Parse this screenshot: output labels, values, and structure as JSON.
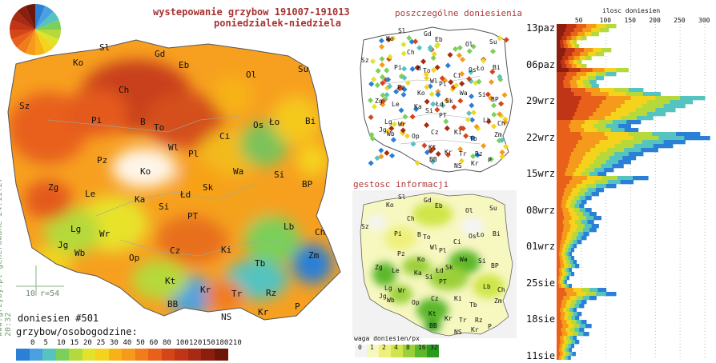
{
  "header": {
    "title_line1": "wystepowanie grzybow 191007-191013",
    "title_line2": "poniedzialek-niedziela"
  },
  "sidebar_note": "www.grzyby.pl generowane 24.11.27 20:32",
  "main_map": {
    "count_label": "doniesien #501",
    "scale_marker": "10 r=54",
    "legend_title": "grzybow/osobogodzine:",
    "legend_ticks": [
      "0",
      "5",
      "10",
      "15",
      "20",
      "25",
      "30",
      "40",
      "50",
      "60",
      "80",
      "100",
      "120",
      "150",
      "180",
      "210"
    ],
    "legend_colors": [
      "#2a7fd6",
      "#4aa0e0",
      "#55c3c0",
      "#7ccf5a",
      "#b5d93a",
      "#e2e22a",
      "#f5d21c",
      "#f7b218",
      "#f59a1a",
      "#f07c1a",
      "#e8601a",
      "#d4461a",
      "#c03516",
      "#a82a12",
      "#8c1e0e",
      "#6e160a"
    ],
    "regions": [
      {
        "code": "Sl"
      },
      {
        "code": "Gd"
      },
      {
        "code": "Eb"
      },
      {
        "code": "Ko"
      },
      {
        "code": "Su"
      },
      {
        "code": "Sz"
      },
      {
        "code": "Ch"
      },
      {
        "code": "Ol"
      },
      {
        "code": "Pi"
      },
      {
        "code": "B"
      },
      {
        "code": "To"
      },
      {
        "code": "Os"
      },
      {
        "code": "Ło"
      },
      {
        "code": "Bi"
      },
      {
        "code": "Ci"
      },
      {
        "code": "Wl"
      },
      {
        "code": "Pl"
      },
      {
        "code": "Pz"
      },
      {
        "code": "Ko"
      },
      {
        "code": "Wa"
      },
      {
        "code": "Si"
      },
      {
        "code": "Zg"
      },
      {
        "code": "Le"
      },
      {
        "code": "Ka"
      },
      {
        "code": "Sk"
      },
      {
        "code": "Łd"
      },
      {
        "code": "BP"
      },
      {
        "code": "Si"
      },
      {
        "code": "PT"
      },
      {
        "code": "Lg"
      },
      {
        "code": "Wr"
      },
      {
        "code": "Lb"
      },
      {
        "code": "Ch"
      },
      {
        "code": "Jg"
      },
      {
        "code": "Wb"
      },
      {
        "code": "Op"
      },
      {
        "code": "Cz"
      },
      {
        "code": "Ki"
      },
      {
        "code": "Zm"
      },
      {
        "code": "Tb"
      },
      {
        "code": "Kt"
      },
      {
        "code": "Kr"
      },
      {
        "code": "Tr"
      },
      {
        "code": "Rz"
      },
      {
        "code": "BB"
      },
      {
        "code": "NS"
      },
      {
        "code": "Kr"
      },
      {
        "code": "P"
      }
    ]
  },
  "reports_map": {
    "title": "poszczególne doniesienia",
    "regions": [
      "Sl",
      "Gd",
      "Eb",
      "Ko",
      "Su",
      "Sz",
      "Ch",
      "Ol",
      "Pi",
      "B",
      "To",
      "Os",
      "Ło",
      "Bi",
      "Ci",
      "Wl",
      "Pl",
      "Pz",
      "Ko",
      "Wa",
      "Si",
      "Zg",
      "Le",
      "Ka",
      "Sk",
      "Łd",
      "BP",
      "Si",
      "PT",
      "Lg",
      "Wr",
      "Lb",
      "Ch",
      "Jg",
      "Wb",
      "Op",
      "Cz",
      "Ki",
      "Zm",
      "Tb",
      "Kt",
      "Kr",
      "Tr",
      "Rz",
      "BB",
      "NS",
      "Kr",
      "P"
    ]
  },
  "density_map": {
    "title": "gestosc informacji",
    "legend_title": "waga doniesien/px",
    "legend_ticks": [
      "0",
      "1",
      "2",
      "4",
      "8",
      "16",
      "32"
    ],
    "legend_colors": [
      "#f4f4f4",
      "#f7f7c0",
      "#eef07a",
      "#cfe64a",
      "#9bd03a",
      "#5cb82a",
      "#2a9a1e"
    ],
    "regions": [
      "Sl",
      "Gd",
      "Eb",
      "Ko",
      "Su",
      "Sz",
      "Ch",
      "Ol",
      "Pi",
      "B",
      "To",
      "Os",
      "Ło",
      "Bi",
      "Ci",
      "Wl",
      "Pl",
      "Pz",
      "Ko",
      "Wa",
      "Si",
      "Zg",
      "Le",
      "Ka",
      "Sk",
      "Łd",
      "BP",
      "Si",
      "PT",
      "Lg",
      "Wr",
      "Lb",
      "Ch",
      "Jg",
      "Wb",
      "Op",
      "Cz",
      "Ki",
      "Zm",
      "Tb",
      "Kt",
      "Kr",
      "Tr",
      "Rz",
      "BB",
      "NS",
      "Kr",
      "P"
    ]
  },
  "chart_data": {
    "type": "bar",
    "title": "ilosc doniesien",
    "orientation": "horizontal",
    "xlim": [
      0,
      300
    ],
    "x_ticks": [
      "50",
      "100",
      "150",
      "200",
      "250",
      "300"
    ],
    "date_labels": [
      "13paz",
      "06paz",
      "29wrz",
      "22wrz",
      "15wrz",
      "08wrz",
      "01wrz",
      "25sie",
      "18sie",
      "11sie"
    ],
    "values_newest_first": [
      120,
      105,
      85,
      60,
      40,
      45,
      110,
      95,
      70,
      50,
      60,
      145,
      120,
      95,
      80,
      85,
      175,
      210,
      300,
      275,
      260,
      240,
      220,
      195,
      170,
      150,
      165,
      290,
      310,
      260,
      235,
      205,
      175,
      160,
      150,
      135,
      115,
      100,
      185,
      155,
      120,
      95,
      85,
      70,
      60,
      55,
      70,
      80,
      90,
      75,
      85,
      80,
      65,
      60,
      50,
      40,
      35,
      30,
      35,
      40,
      45,
      30,
      35,
      25,
      20,
      30,
      100,
      120,
      80,
      60,
      55,
      40,
      50,
      45,
      60,
      70,
      55,
      65,
      40,
      45,
      35,
      30,
      38,
      28
    ]
  }
}
